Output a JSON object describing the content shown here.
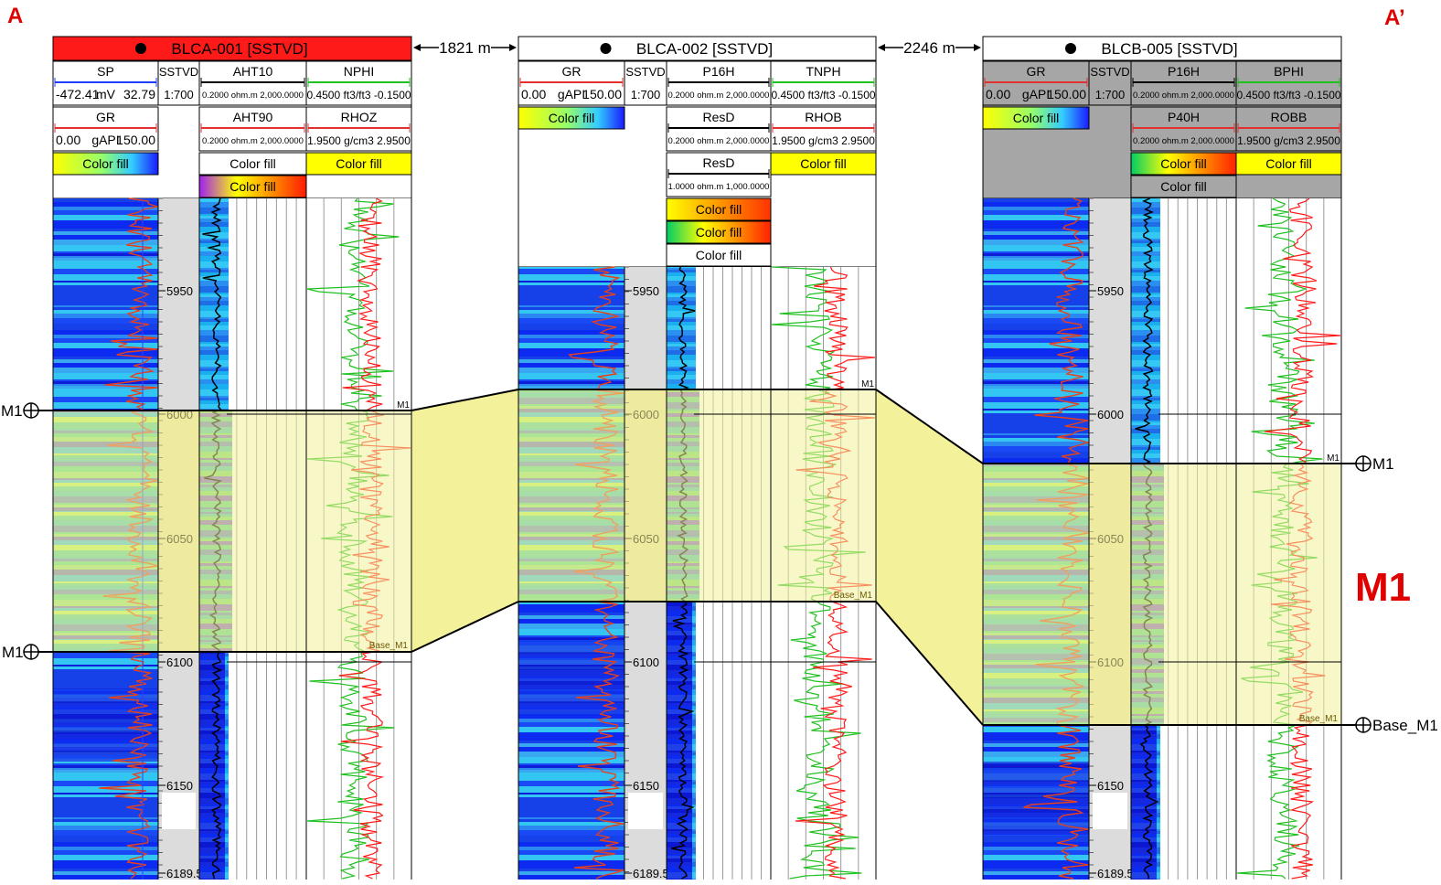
{
  "section": {
    "left_label": "A",
    "right_label": "A’",
    "zone_label": "M1",
    "gap_1": "1821 m",
    "gap_2": "2246 m"
  },
  "wells": [
    {
      "title": "BLCA-001 [SSTVD]",
      "title_color": "#ff1a1a",
      "header_color": "#ffffff",
      "tracks": [
        {
          "rows": [
            {
              "type": "curve",
              "name": "SP",
              "line": "#1f3fff",
              "min": "-472.41",
              "unit": "mV",
              "max": "32.79"
            },
            {
              "type": "curve",
              "name": "GR",
              "line": "#e03030",
              "min": "0.00",
              "unit": "gAPI",
              "max": "150.00"
            },
            {
              "type": "fill",
              "text": "Color fill",
              "grad": "yellow-blue"
            }
          ]
        },
        {
          "rows": [
            {
              "type": "depth",
              "name": "SSTVD",
              "scale": "1:700"
            }
          ]
        },
        {
          "rows": [
            {
              "type": "curve",
              "name": "AHT10",
              "line": "#000000",
              "small": "0.2000 ohm.m 2,000.0000"
            },
            {
              "type": "curve",
              "name": "AHT90",
              "line": "#e03030",
              "small": "0.2000 ohm.m 2,000.0000"
            },
            {
              "type": "fill",
              "text": "Color fill",
              "grad": "white"
            },
            {
              "type": "fill",
              "text": "Color fill",
              "grad": "purple-red"
            }
          ]
        },
        {
          "rows": [
            {
              "type": "curve",
              "name": "NPHI",
              "line": "#20c020",
              "small2": "0.4500 ft3/ft3 -0.1500"
            },
            {
              "type": "curve",
              "name": "RHOZ",
              "line": "#e03030",
              "small2": "1.9500 g/cm3 2.9500"
            },
            {
              "type": "fill",
              "text": "Color fill",
              "grad": "yellow"
            }
          ]
        }
      ],
      "depths": [
        "5950",
        "6000",
        "6050",
        "6100",
        "6150",
        "6189.5"
      ],
      "markers": {
        "top": "M1",
        "base": "Base_M1"
      },
      "left_markers": {
        "top": "M1",
        "base": "M1"
      }
    },
    {
      "title": "BLCA-002 [SSTVD]",
      "title_color": "#ffffff",
      "header_color": "#ffffff",
      "tracks": [
        {
          "rows": [
            {
              "type": "curve",
              "name": "GR",
              "line": "#e03030",
              "min": "0.00",
              "unit": "gAPI",
              "max": "150.00"
            },
            {
              "type": "fill",
              "text": "Color fill",
              "grad": "yellow-blue"
            }
          ]
        },
        {
          "rows": [
            {
              "type": "depth",
              "name": "SSTVD",
              "scale": "1:700"
            }
          ]
        },
        {
          "rows": [
            {
              "type": "curve",
              "name": "P16H",
              "line": "#000000",
              "small": "0.2000 ohm.m 2,000.0000"
            },
            {
              "type": "curve",
              "name": "ResD",
              "line": "#000000",
              "small": "0.2000 ohm.m 2,000.0000"
            },
            {
              "type": "curve",
              "name": "ResD",
              "line": "#000000",
              "small": "1.0000 ohm.m 1,000.0000"
            },
            {
              "type": "fill",
              "text": "Color fill",
              "grad": "yellow-red"
            },
            {
              "type": "fill",
              "text": "Color fill",
              "grad": "green-red"
            },
            {
              "type": "fill",
              "text": "Color fill",
              "grad": "white"
            }
          ]
        },
        {
          "rows": [
            {
              "type": "curve",
              "name": "TNPH",
              "line": "#20c020",
              "small2": "0.4500 ft3/ft3 -0.1500"
            },
            {
              "type": "curve",
              "name": "RHOB",
              "line": "#e03030",
              "small2": "1.9500 g/cm3 2.9500"
            },
            {
              "type": "fill",
              "text": "Color fill",
              "grad": "yellow"
            }
          ]
        }
      ],
      "depths": [
        "5950",
        "6000",
        "6050",
        "6100",
        "6150",
        "6189.5"
      ],
      "markers": {
        "top": "M1",
        "base": "Base_M1"
      }
    },
    {
      "title": "BLCB-005 [SSTVD]",
      "title_color": "#ffffff",
      "header_color": "#a6a6a6",
      "tracks": [
        {
          "rows": [
            {
              "type": "curve",
              "name": "GR",
              "line": "#e03030",
              "min": "0.00",
              "unit": "gAPI",
              "max": "150.00"
            },
            {
              "type": "fill",
              "text": "Color fill",
              "grad": "yellow-blue"
            }
          ]
        },
        {
          "rows": [
            {
              "type": "depth",
              "name": "SSTVD",
              "scale": "1:700"
            }
          ]
        },
        {
          "rows": [
            {
              "type": "curve",
              "name": "P16H",
              "line": "#000000",
              "small": "0.2000 ohm.m 2,000.0000"
            },
            {
              "type": "curve",
              "name": "P40H",
              "line": "#e03030",
              "small": "0.2000 ohm.m 2,000.0000"
            },
            {
              "type": "fill",
              "text": "Color fill",
              "grad": "green-red"
            },
            {
              "type": "fill",
              "text": "Color fill",
              "grad": "grey"
            }
          ]
        },
        {
          "rows": [
            {
              "type": "curve",
              "name": "BPHI",
              "line": "#20c020",
              "small2": "0.4500 ft3/ft3 -0.1500"
            },
            {
              "type": "curve",
              "name": "ROBB",
              "line": "#e03030",
              "small2": "1.9500 g/cm3 2.9500"
            },
            {
              "type": "fill",
              "text": "Color fill",
              "grad": "yellow"
            }
          ]
        }
      ],
      "depths": [
        "5950",
        "6000",
        "6050",
        "6100",
        "6150",
        "6189.5"
      ],
      "markers": {
        "top": "M1",
        "base": "Base_M1"
      },
      "right_markers": {
        "top": "M1",
        "base": "Base_M1"
      }
    }
  ],
  "colors": {
    "zone_fill": "#f3f19a",
    "correlation_line": "#000000"
  }
}
